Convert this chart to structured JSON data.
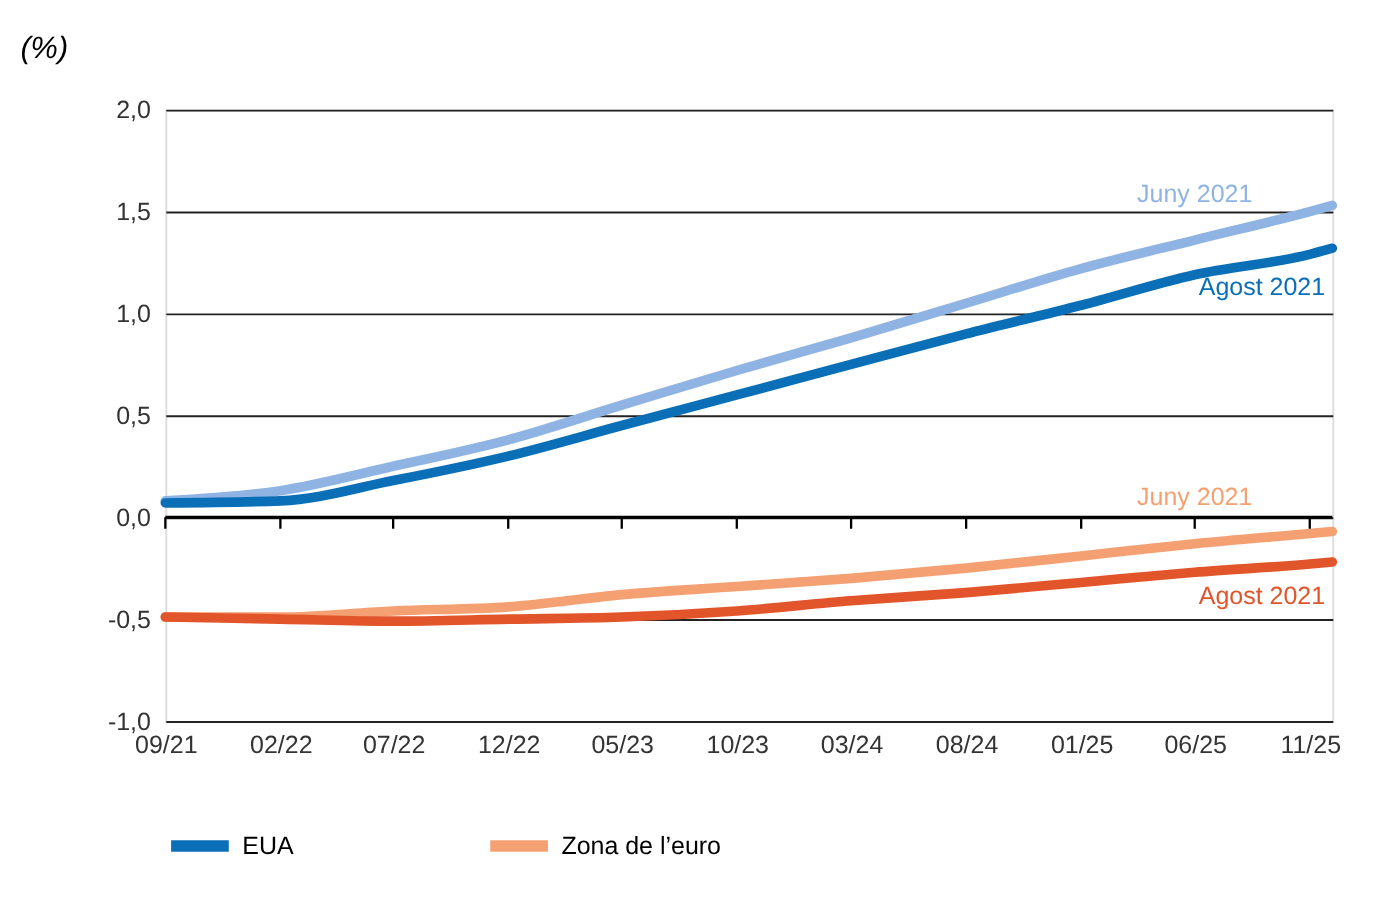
{
  "chart_data": {
    "type": "line",
    "ylabel": "(%)",
    "x": [
      "2021-09",
      "2022-02",
      "2022-07",
      "2022-12",
      "2023-05",
      "2023-10",
      "2024-03",
      "2024-08",
      "2025-01",
      "2025-06",
      "2025-11",
      "2025-12"
    ],
    "series": [
      {
        "color": "#8fb4e3",
        "values": [
          0.08,
          0.13,
          0.25,
          0.38,
          0.55,
          0.72,
          0.88,
          1.05,
          1.22,
          1.36,
          1.5,
          1.53
        ]
      },
      {
        "name": "EUA",
        "color": "#0a6fb7",
        "values": [
          0.07,
          0.08,
          0.18,
          0.3,
          0.45,
          0.6,
          0.75,
          0.9,
          1.04,
          1.19,
          1.29,
          1.32
        ]
      },
      {
        "name": "Zona de l’euro",
        "color": "#f4a072",
        "values": [
          -0.49,
          -0.49,
          -0.46,
          -0.44,
          -0.38,
          -0.34,
          -0.3,
          -0.25,
          -0.19,
          -0.13,
          -0.08,
          -0.07
        ]
      },
      {
        "color": "#e2542a",
        "values": [
          -0.49,
          -0.5,
          -0.51,
          -0.5,
          -0.49,
          -0.46,
          -0.41,
          -0.37,
          -0.32,
          -0.27,
          -0.23,
          -0.22
        ]
      }
    ],
    "annotations": [
      "Juny 2021",
      "Agost 2021",
      "Juny 2021",
      "Agost 2021"
    ],
    "xlim": [
      "2021-09",
      "2025-12"
    ],
    "xticks": [
      {
        "value": "2021-09",
        "label": "09/21"
      },
      {
        "value": "2022-02",
        "label": "02/22"
      },
      {
        "value": "2022-07",
        "label": "07/22"
      },
      {
        "value": "2022-12",
        "label": "12/22"
      },
      {
        "value": "2023-05",
        "label": "05/23"
      },
      {
        "value": "2023-10",
        "label": "10/23"
      },
      {
        "value": "2024-03",
        "label": "03/24"
      },
      {
        "value": "2024-08",
        "label": "08/24"
      },
      {
        "value": "2025-01",
        "label": "01/25"
      },
      {
        "value": "2025-06",
        "label": "06/25"
      },
      {
        "value": "2025-11",
        "label": "11/25"
      }
    ],
    "ylim": [
      -1,
      2
    ],
    "yticks": [
      {
        "value": -1,
        "label": "-1,0"
      },
      {
        "value": -0.5,
        "label": "-0,5"
      },
      {
        "value": 0,
        "label": "0,0"
      },
      {
        "value": 0.5,
        "label": "0,5"
      },
      {
        "value": 1,
        "label": "1,0"
      },
      {
        "value": 1.5,
        "label": "1,5"
      },
      {
        "value": 2,
        "label": "2,0"
      }
    ],
    "grid": "y",
    "legend": "bottom",
    "line_style": "solid"
  }
}
